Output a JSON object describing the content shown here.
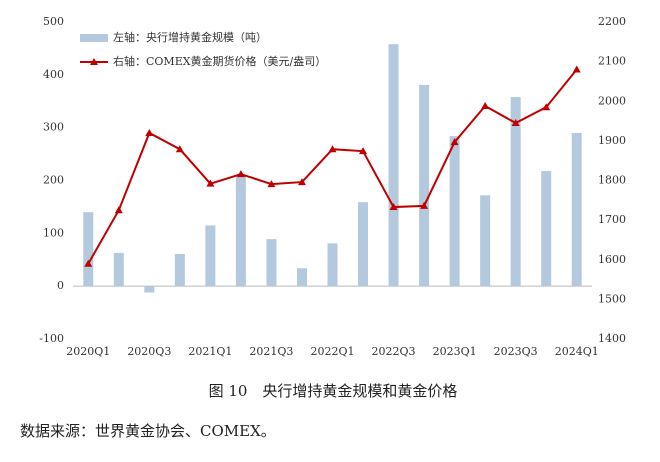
{
  "chart_data": {
    "type": "combo",
    "categories": [
      "2020Q1",
      null,
      "2020Q3",
      null,
      "2021Q1",
      null,
      "2021Q3",
      null,
      "2022Q1",
      null,
      "2022Q3",
      null,
      "2023Q1",
      null,
      "2023Q3",
      null,
      "2024Q1"
    ],
    "series": [
      {
        "name": "左轴：央行增持黄金规模（吨）",
        "type": "bar",
        "axis": "y",
        "color": "#b4c9dd",
        "values": [
          140,
          63,
          -12,
          61,
          115,
          210,
          89,
          34,
          81,
          159,
          458,
          381,
          284,
          172,
          358,
          218,
          290
        ]
      },
      {
        "name": "右轴：COMEX黄金期货价格（美元/盎司）",
        "type": "line",
        "axis": "y2",
        "color": "#c00000",
        "values": [
          1590,
          1725,
          1920,
          1879,
          1792,
          1816,
          1791,
          1796,
          1879,
          1874,
          1733,
          1736,
          1897,
          1988,
          1945,
          1985,
          2080
        ]
      }
    ],
    "ylim": [
      -100,
      500
    ],
    "yticks": [
      -100,
      0,
      100,
      200,
      300,
      400,
      500
    ],
    "y2lim": [
      1400,
      2200
    ],
    "y2ticks": [
      1400,
      1500,
      1600,
      1700,
      1800,
      1900,
      2000,
      2100,
      2200
    ],
    "grid": false,
    "legend": "top-left",
    "caption": "图 10　央行增持黄金规模和黄金价格",
    "source": "数据来源：世界黄金协会、COMEX。"
  }
}
